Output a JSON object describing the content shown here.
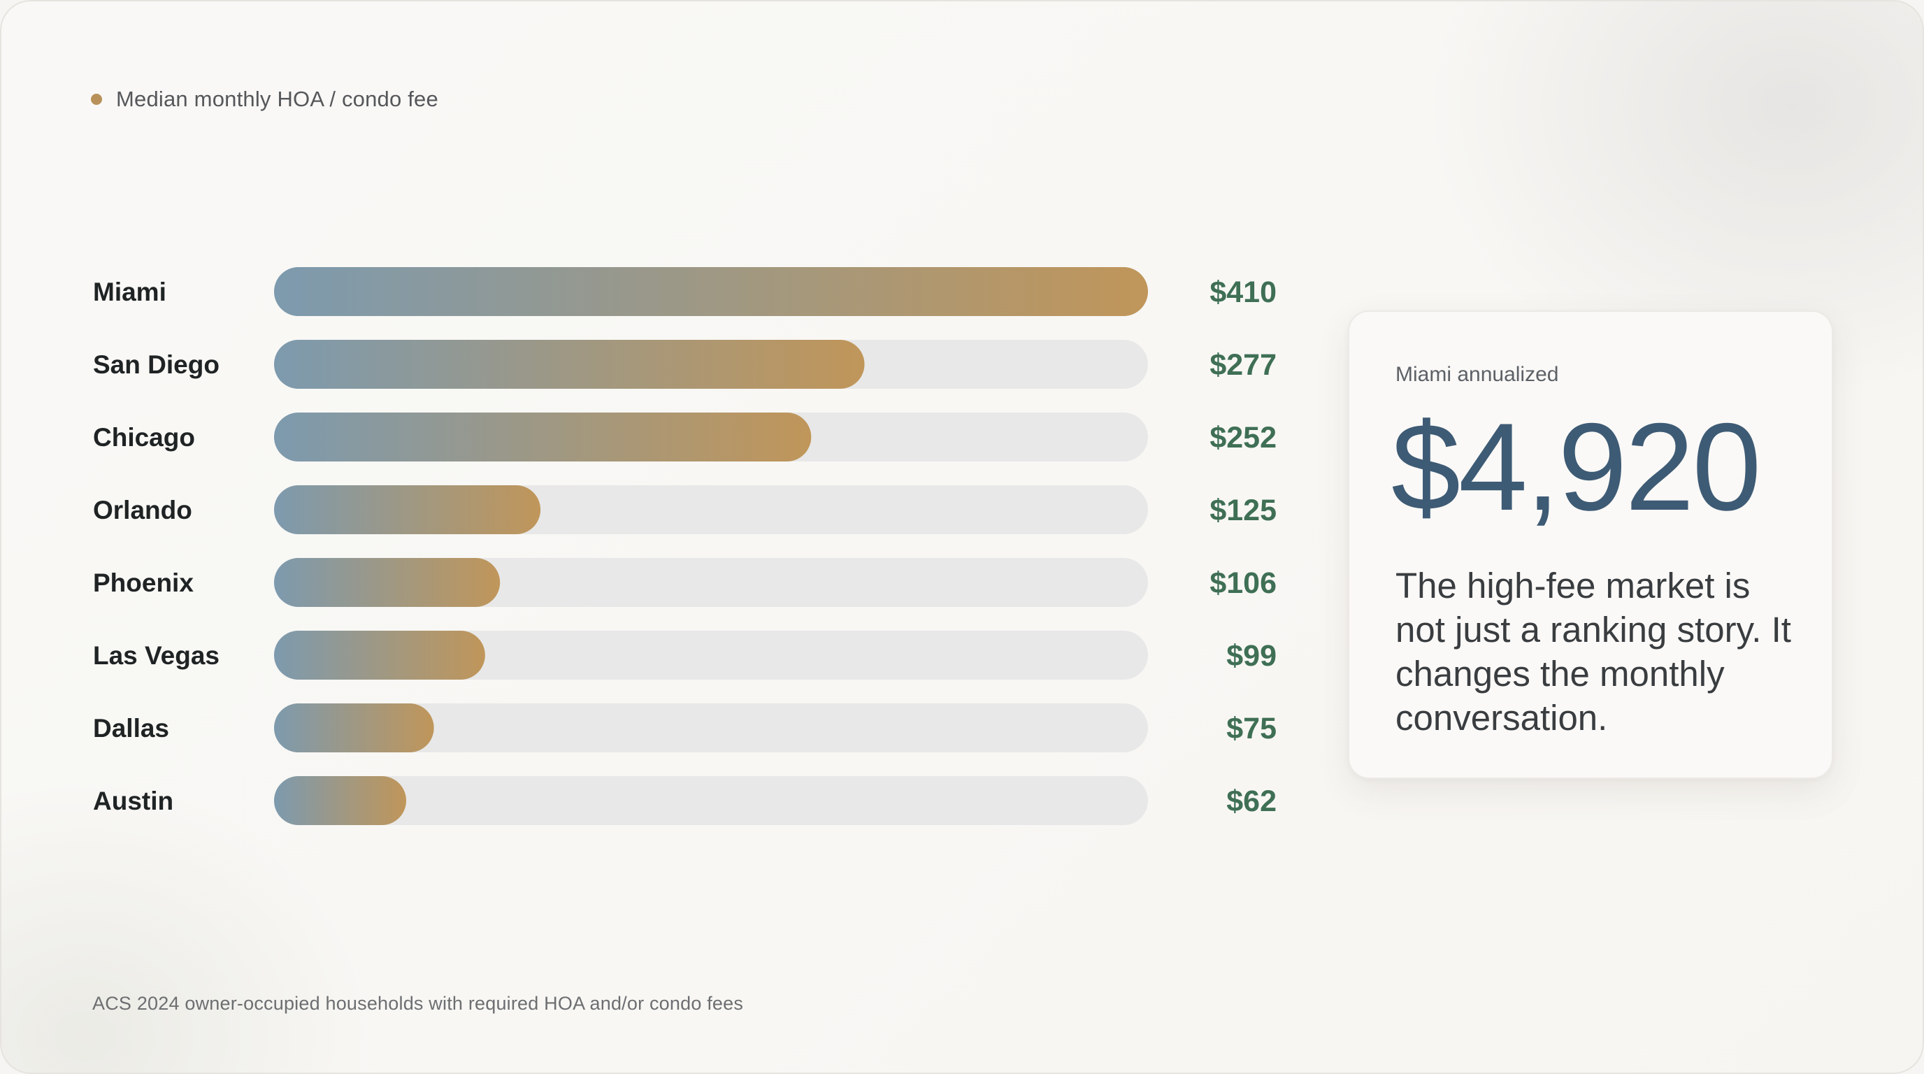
{
  "legend": {
    "label": "Median monthly HOA / condo fee",
    "dot_color": "#b8915a"
  },
  "colors": {
    "bar_start": "#7d9aae",
    "bar_end": "#c0965a",
    "track": "#e8e8e8",
    "value_text": "#3f6f55",
    "highlight_value": "#3e5b75"
  },
  "chart_data": {
    "type": "bar",
    "orientation": "horizontal",
    "categories": [
      "Miami",
      "San Diego",
      "Chicago",
      "Orlando",
      "Phoenix",
      "Las Vegas",
      "Dallas",
      "Austin"
    ],
    "values": [
      410,
      277,
      252,
      125,
      106,
      99,
      75,
      62
    ],
    "value_labels": [
      "$410",
      "$277",
      "$252",
      "$125",
      "$106",
      "$99",
      "$75",
      "$62"
    ],
    "xlim": [
      0,
      410
    ],
    "grid": false,
    "legend_position": "top-left"
  },
  "card": {
    "kicker": "Miami annualized",
    "value": "$4,920",
    "text": "The high-fee market is not just a ranking story. It changes the monthly conversation."
  },
  "footnote": "ACS 2024 owner-occupied households with required HOA and/or condo fees"
}
